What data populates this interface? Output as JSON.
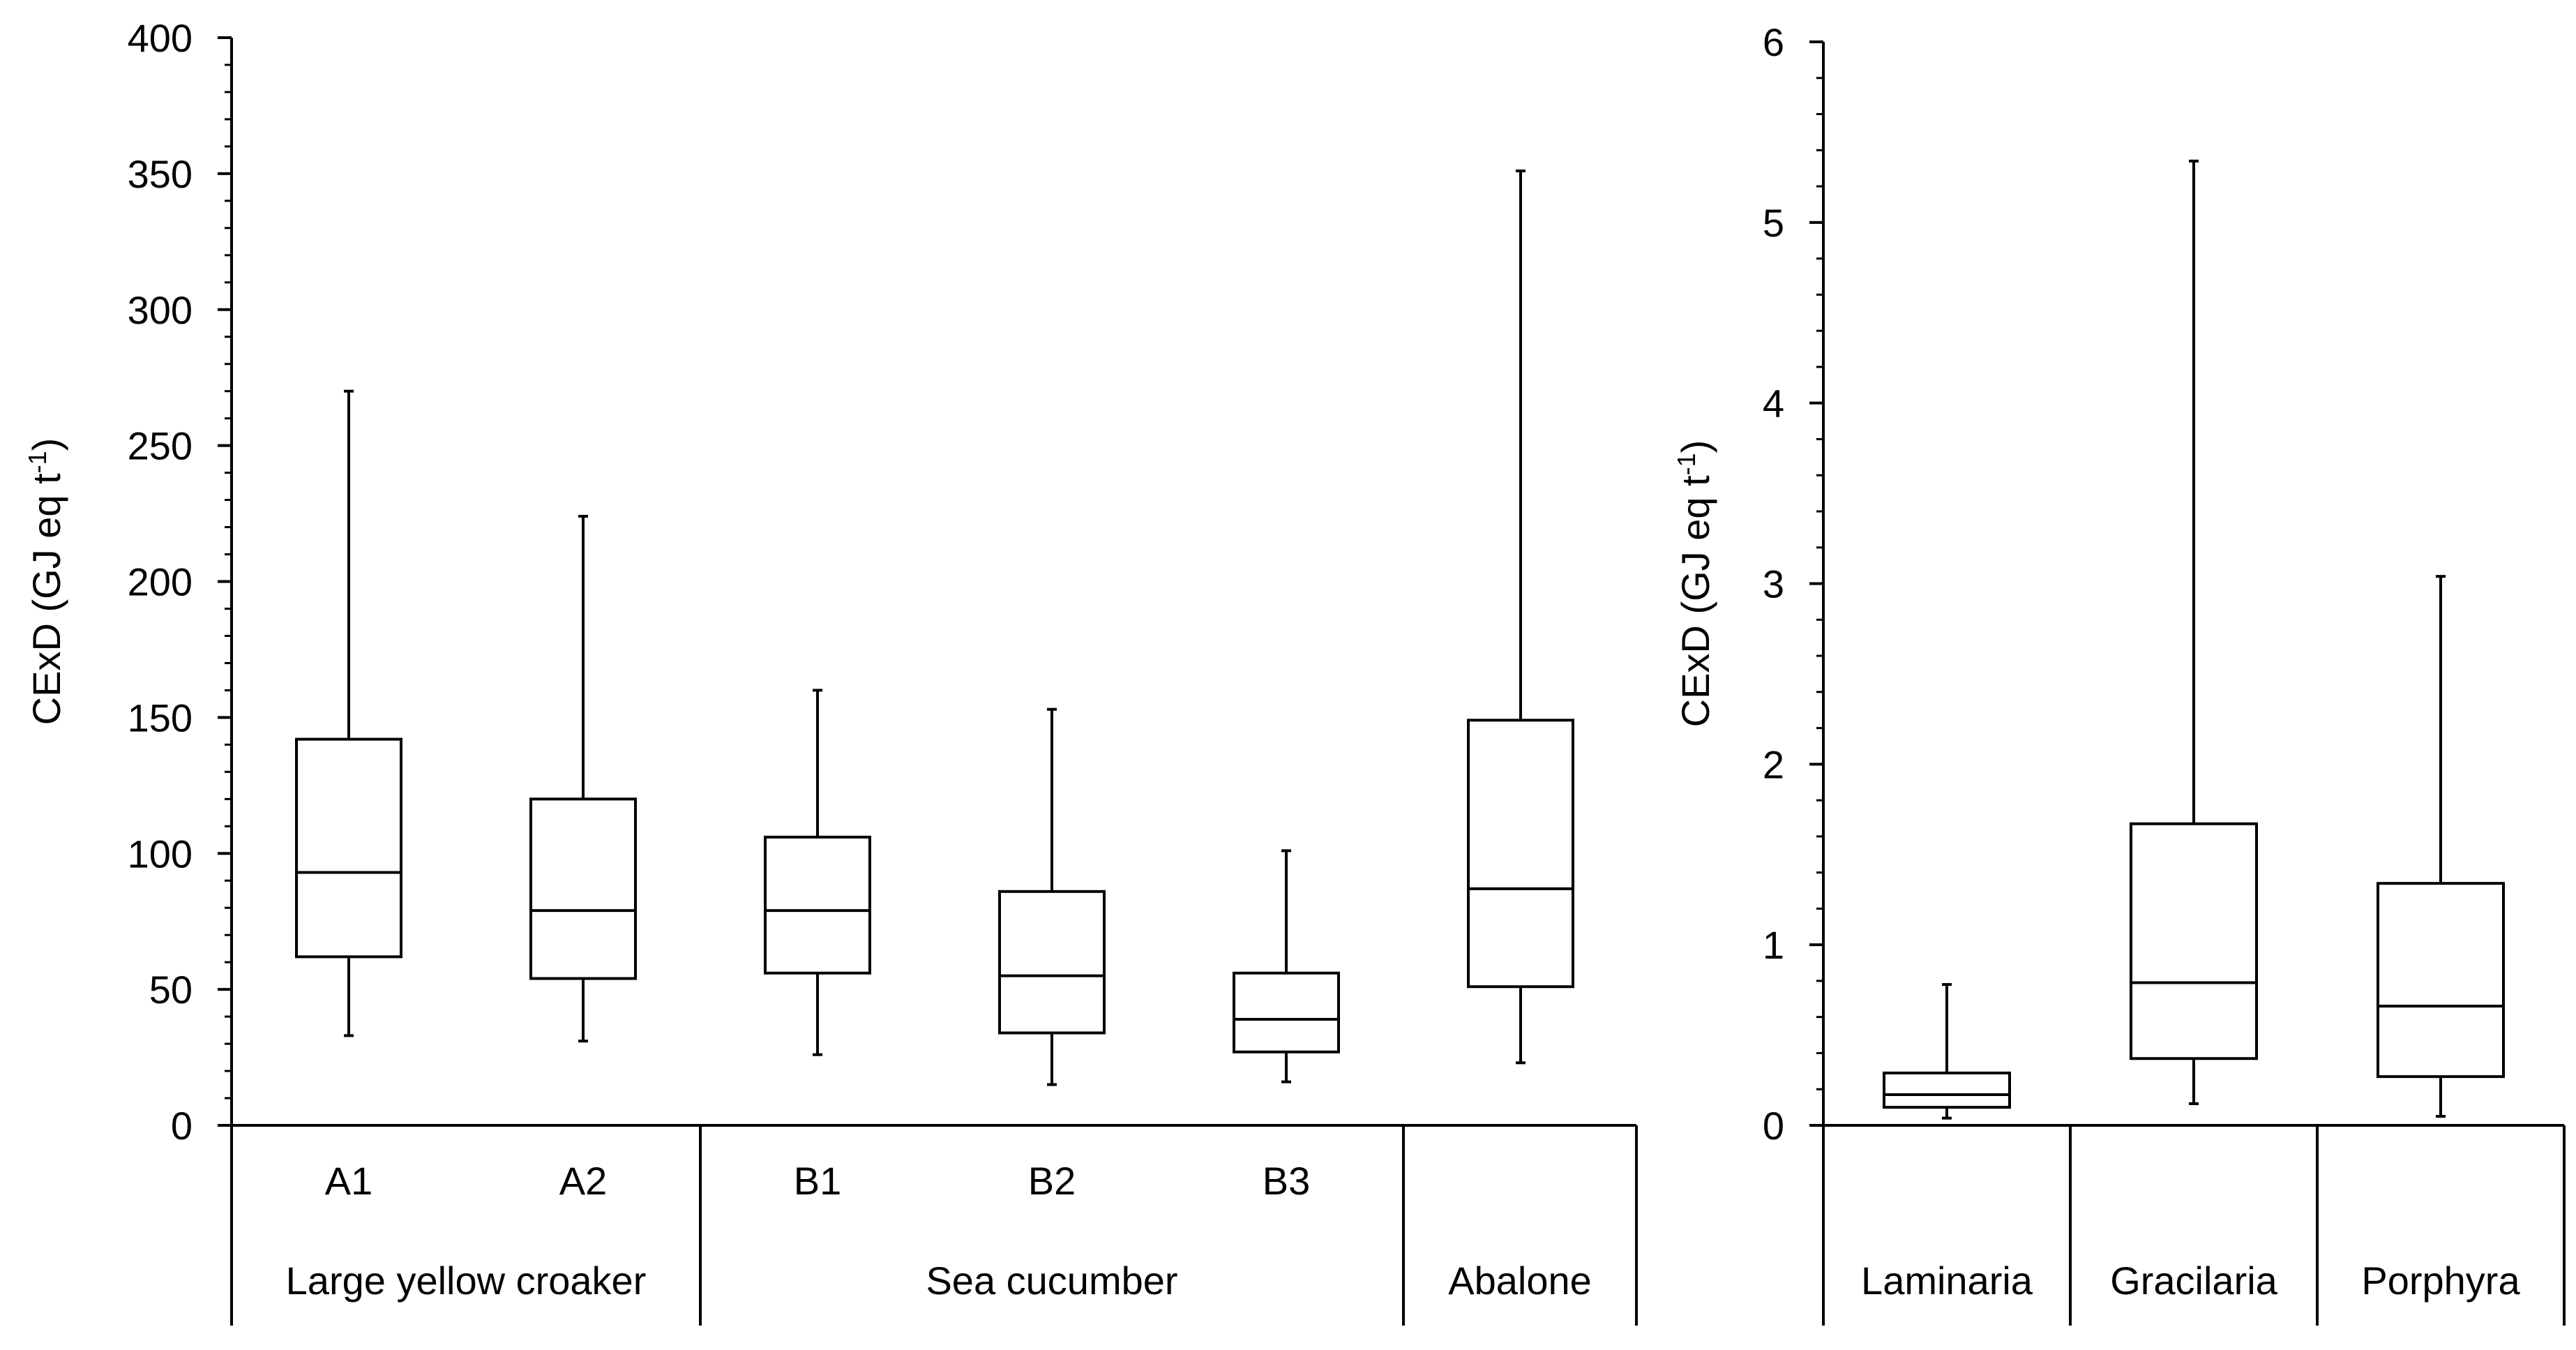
{
  "chart_data": [
    {
      "type": "box",
      "id": "left",
      "ylabel": "CExD (GJ eq t",
      "ylabel_sup": "-1",
      "ylabel_end": ")",
      "ylim": [
        0,
        400
      ],
      "yticks": [
        0,
        50,
        100,
        150,
        200,
        250,
        300,
        350,
        400
      ],
      "categories": [
        "A1",
        "A2",
        "B1",
        "B2",
        "B3",
        "Abalone"
      ],
      "groups": [
        {
          "name": "Large yellow croaker",
          "categories": [
            "A1",
            "A2"
          ]
        },
        {
          "name": "Sea cucumber",
          "categories": [
            "B1",
            "B2",
            "B3"
          ]
        },
        {
          "name": "Abalone",
          "categories": [
            "Abalone"
          ]
        }
      ],
      "boxes": [
        {
          "label": "A1",
          "show_label": true,
          "min": 33,
          "q1": 62,
          "median": 93,
          "q3": 142,
          "max": 270
        },
        {
          "label": "A2",
          "show_label": true,
          "min": 31,
          "q1": 54,
          "median": 79,
          "q3": 120,
          "max": 224
        },
        {
          "label": "B1",
          "show_label": true,
          "min": 26,
          "q1": 56,
          "median": 79,
          "q3": 106,
          "max": 160
        },
        {
          "label": "B2",
          "show_label": true,
          "min": 15,
          "q1": 34,
          "median": 55,
          "q3": 86,
          "max": 153
        },
        {
          "label": "B3",
          "show_label": true,
          "min": 16,
          "q1": 27,
          "median": 39,
          "q3": 56,
          "max": 101
        },
        {
          "label": "Abalone",
          "show_label": false,
          "min": 23,
          "q1": 51,
          "median": 87,
          "q3": 149,
          "max": 351
        }
      ]
    },
    {
      "type": "box",
      "id": "right",
      "ylabel": "CExD (GJ eq t",
      "ylabel_sup": "-1",
      "ylabel_end": ")",
      "ylim": [
        0,
        6
      ],
      "yticks": [
        0,
        1,
        2,
        3,
        4,
        5,
        6
      ],
      "categories": [
        "Laminaria",
        "Gracilaria",
        "Porphyra"
      ],
      "groups": [
        {
          "name": "Laminaria",
          "categories": [
            "Laminaria"
          ]
        },
        {
          "name": "Gracilaria",
          "categories": [
            "Gracilaria"
          ]
        },
        {
          "name": "Porphyra",
          "categories": [
            "Porphyra"
          ]
        }
      ],
      "boxes": [
        {
          "label": "Laminaria",
          "show_label": false,
          "min": 0.04,
          "q1": 0.1,
          "median": 0.17,
          "q3": 0.29,
          "max": 0.78
        },
        {
          "label": "Gracilaria",
          "show_label": false,
          "min": 0.12,
          "q1": 0.37,
          "median": 0.79,
          "q3": 1.67,
          "max": 5.34
        },
        {
          "label": "Porphyra",
          "show_label": false,
          "min": 0.05,
          "q1": 0.27,
          "median": 0.66,
          "q3": 1.34,
          "max": 3.04
        }
      ]
    }
  ]
}
